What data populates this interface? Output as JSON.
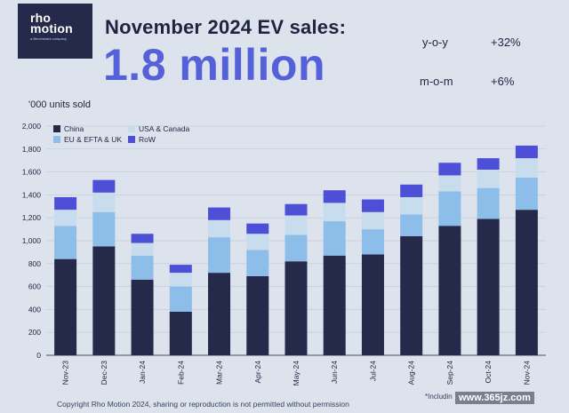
{
  "logo": {
    "name": "rho motion",
    "sub": "a Benchmark company"
  },
  "headline": "November 2024 EV sales:",
  "big_number": "1.8 million",
  "stats": [
    {
      "label": "y-o-y",
      "value": "+32%"
    },
    {
      "label": "m-o-m",
      "value": "+6%"
    }
  ],
  "units_label": "'000 units sold",
  "footer": "Copyright Rho Motion 2024, sharing or reproduction is not permitted without permission",
  "footnote": "*Includin",
  "watermark": "www.365jz.com",
  "colors": {
    "China": "#252a4a",
    "USA & Canada": "#c7dcec",
    "EU & EFTA & UK": "#8dbde9",
    "RoW": "#4d4fd6"
  },
  "chart_data": {
    "type": "bar",
    "stacked": true,
    "categories": [
      "Nov-23",
      "Dec-23",
      "Jan-24",
      "Feb-24",
      "Mar-24",
      "Apr-24",
      "May-24",
      "Jun-24",
      "Jul-24",
      "Aug-24",
      "Sep-24",
      "Oct-24",
      "Nov-24"
    ],
    "series": [
      {
        "name": "China",
        "values": [
          840,
          950,
          660,
          380,
          720,
          690,
          820,
          870,
          880,
          1040,
          1130,
          1190,
          1270
        ]
      },
      {
        "name": "EU & EFTA & UK",
        "values": [
          290,
          300,
          210,
          220,
          310,
          230,
          230,
          300,
          220,
          190,
          300,
          270,
          280
        ]
      },
      {
        "name": "USA & Canada",
        "values": [
          140,
          170,
          110,
          120,
          150,
          140,
          170,
          160,
          150,
          150,
          140,
          160,
          170
        ]
      },
      {
        "name": "RoW",
        "values": [
          110,
          110,
          80,
          70,
          110,
          90,
          100,
          110,
          110,
          110,
          110,
          100,
          110
        ]
      }
    ],
    "legend_order": [
      "China",
      "USA & Canada",
      "EU & EFTA & UK",
      "RoW"
    ],
    "legend_position": "top-left",
    "ylim": [
      0,
      2000
    ],
    "yticks": [
      "0",
      "200",
      "400",
      "600",
      "800",
      "1,000",
      "1,200",
      "1,400",
      "1,600",
      "1,800",
      "2,000"
    ],
    "ytick_values": [
      0,
      200,
      400,
      600,
      800,
      1000,
      1200,
      1400,
      1600,
      1800,
      2000
    ],
    "grid": true,
    "xlabel": "",
    "ylabel": ""
  }
}
